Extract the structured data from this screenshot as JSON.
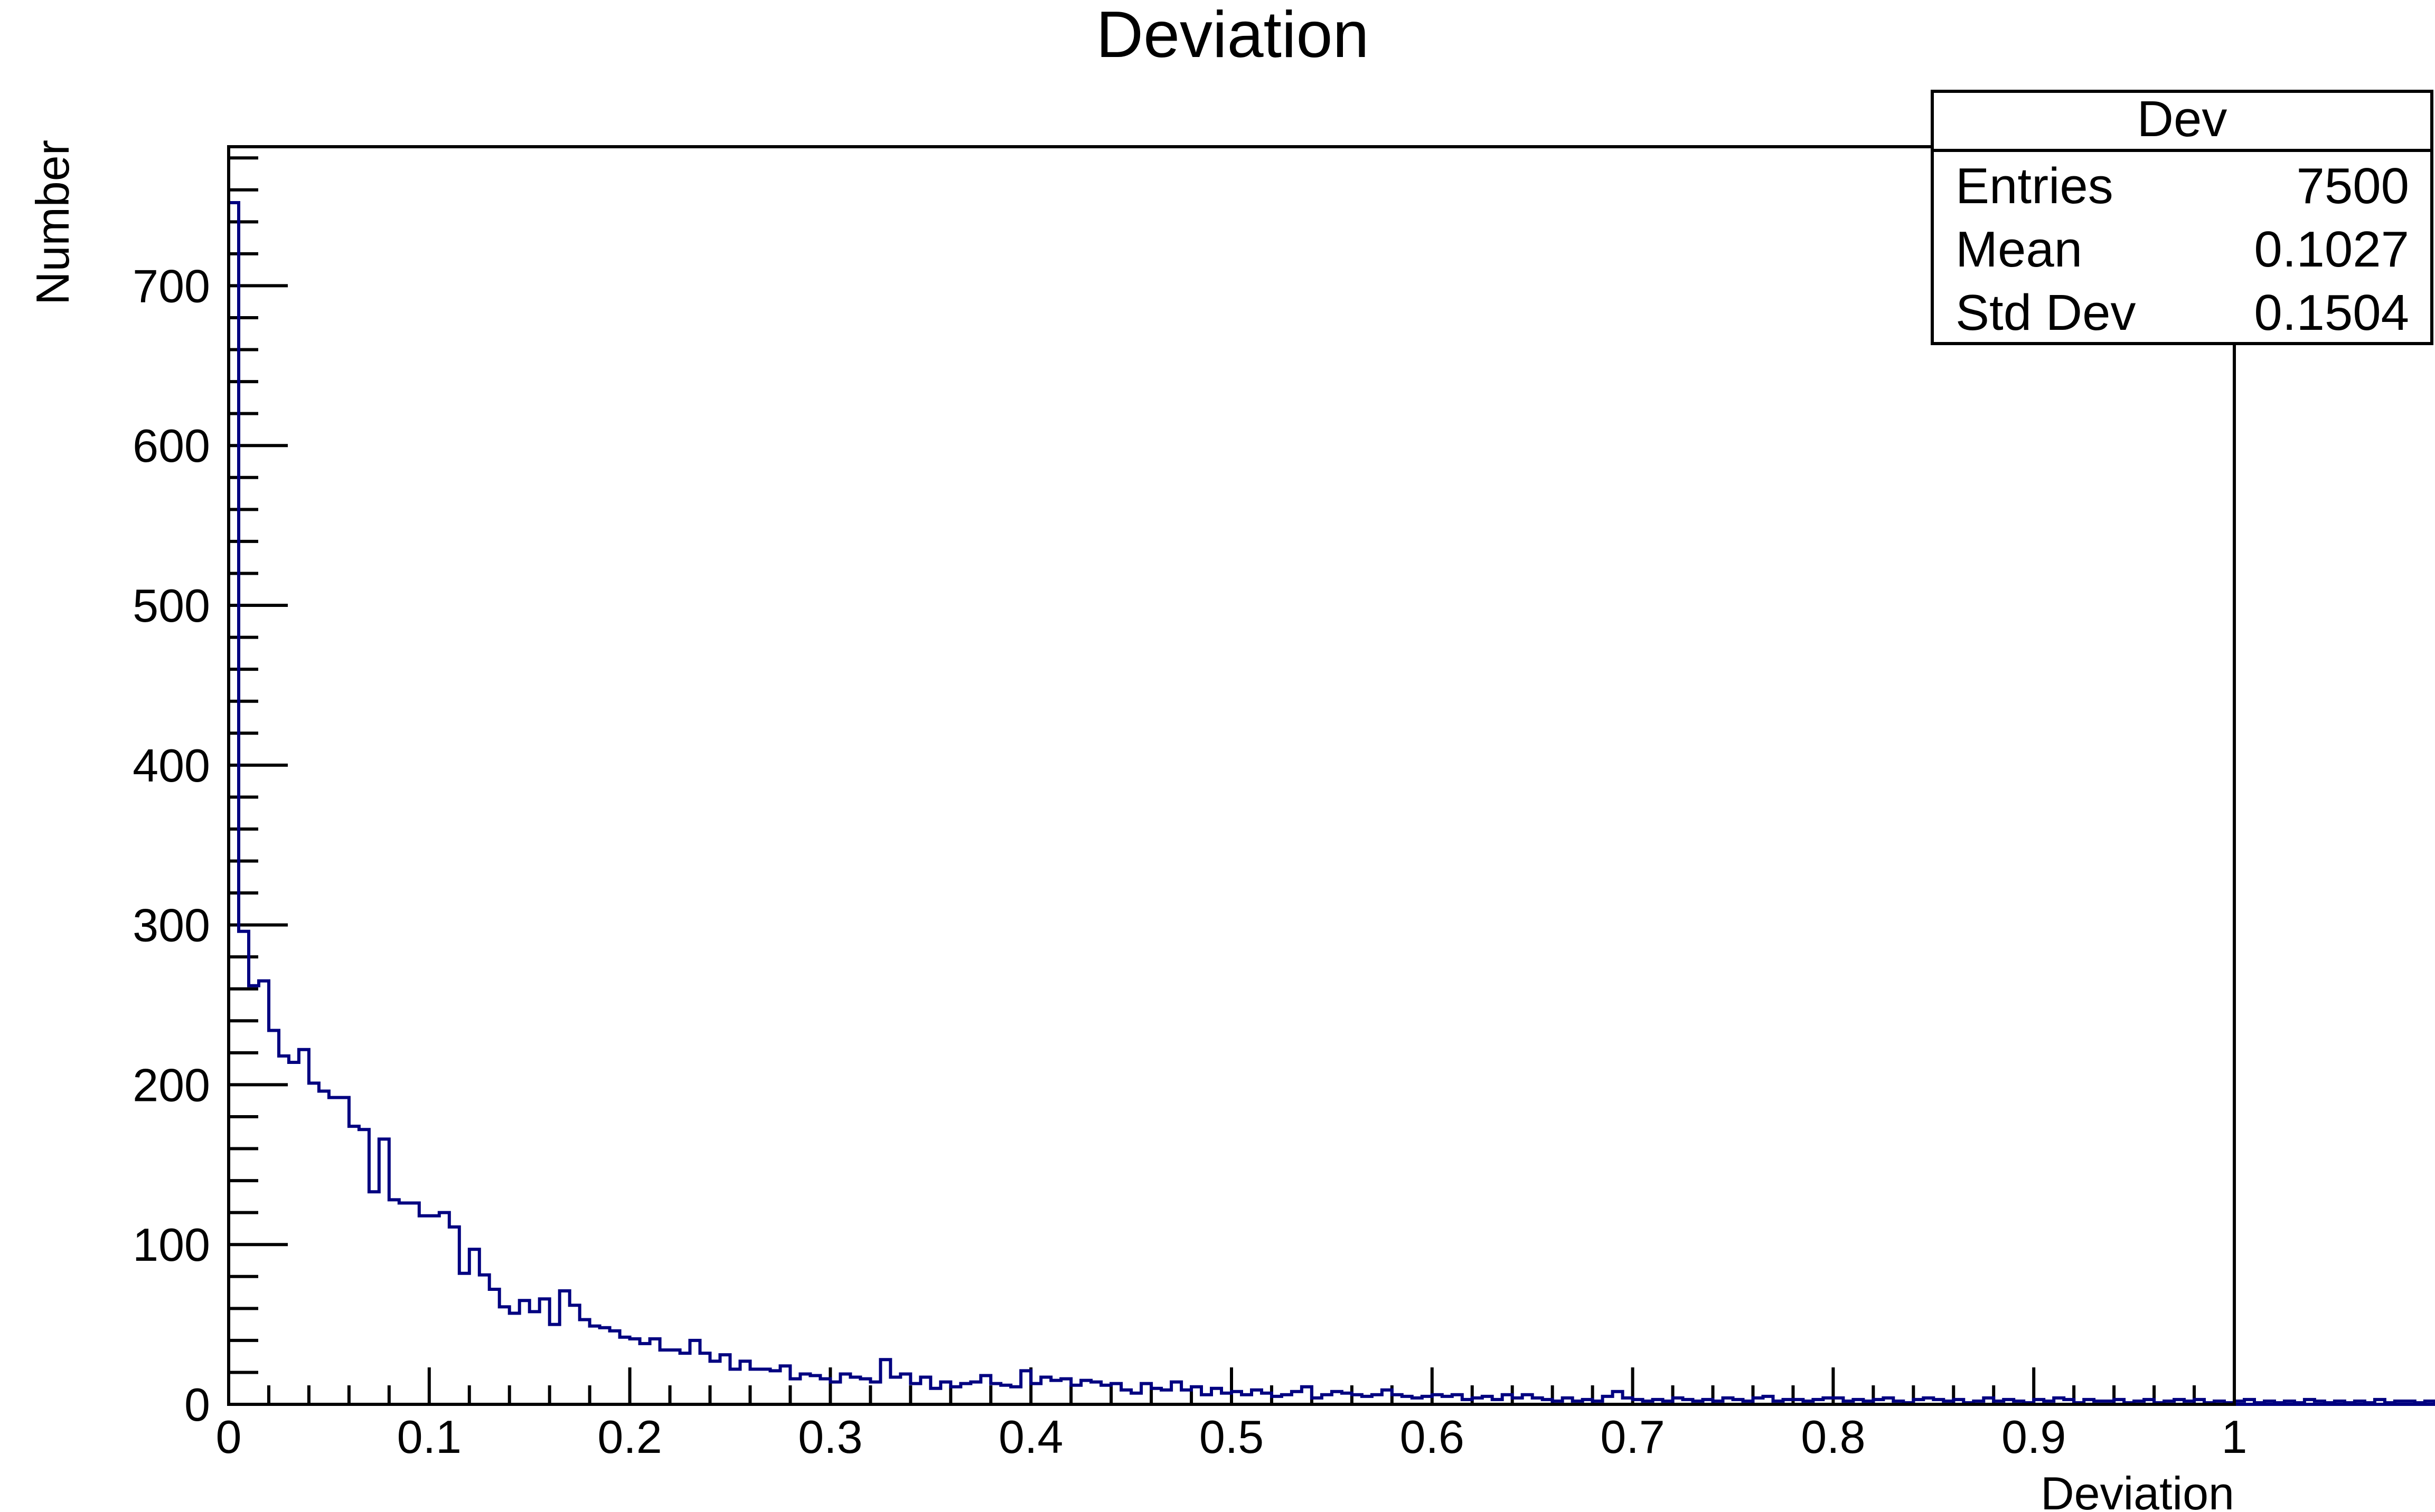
{
  "chart_data": {
    "type": "histogram",
    "title": "Deviation",
    "xlabel": "Deviation",
    "ylabel": "Number",
    "xlim": [
      0,
      1
    ],
    "ylim": [
      0,
      787
    ],
    "x_ticks": [
      "0",
      "0.1",
      "0.2",
      "0.3",
      "0.4",
      "0.5",
      "0.6",
      "0.7",
      "0.8",
      "0.9",
      "1"
    ],
    "y_ticks": [
      "0",
      "100",
      "200",
      "300",
      "400",
      "500",
      "600",
      "700"
    ],
    "line_color": "#000080",
    "grid": false,
    "stats_box": {
      "name": "Dev",
      "rows": [
        {
          "label": "Entries",
          "value": "7500"
        },
        {
          "label": "Mean",
          "value": "0.1027"
        },
        {
          "label": "Std Dev",
          "value": "0.1504"
        }
      ],
      "placement": "top-right"
    },
    "bin_width": 0.005,
    "counts": [
      752,
      296,
      262,
      265,
      234,
      218,
      214,
      222,
      201,
      196,
      192,
      192,
      174,
      172,
      133,
      166,
      128,
      126,
      126,
      118,
      118,
      120,
      111,
      82,
      97,
      81,
      72,
      61,
      57,
      65,
      58,
      66,
      50,
      71,
      62,
      53,
      49,
      48,
      46,
      42,
      41,
      38,
      41,
      34,
      34,
      32,
      40,
      32,
      27,
      31,
      22,
      27,
      22,
      22,
      21,
      24,
      16,
      19,
      18,
      16,
      14,
      19,
      17,
      16,
      14,
      28,
      17,
      19,
      13,
      17,
      10,
      14,
      11,
      13,
      14,
      18,
      13,
      12,
      11,
      21,
      13,
      17,
      15,
      16,
      12,
      15,
      14,
      12,
      13,
      9,
      7,
      13,
      10,
      9,
      14,
      9,
      11,
      6,
      10,
      7,
      8,
      6,
      9,
      7,
      5,
      6,
      8,
      11,
      4,
      6,
      8,
      7,
      6,
      5,
      6,
      9,
      6,
      5,
      4,
      5,
      6,
      5,
      6,
      3,
      4,
      5,
      3,
      6,
      4,
      6,
      4,
      3,
      2,
      4,
      2,
      3,
      2,
      5,
      8,
      4,
      3,
      2,
      3,
      2,
      4,
      3,
      2,
      3,
      2,
      4,
      3,
      2,
      4,
      5,
      2,
      3,
      3,
      2,
      3,
      4,
      4,
      2,
      3,
      2,
      3,
      4,
      2,
      1,
      3,
      4,
      3,
      2,
      3,
      1,
      2,
      4,
      2,
      3,
      2,
      1,
      3,
      2,
      4,
      3,
      1,
      3,
      2,
      2,
      3,
      1,
      2,
      3,
      1,
      2,
      3,
      2,
      3,
      1,
      2,
      1,
      2,
      3,
      1,
      2,
      1,
      2,
      1,
      3,
      2,
      1,
      2,
      1,
      2,
      1,
      3,
      1,
      2,
      2,
      1,
      2,
      1,
      2,
      1,
      2,
      1,
      2,
      2,
      1,
      2,
      1,
      1,
      2,
      1,
      1,
      2,
      1,
      2,
      1,
      1,
      2,
      1,
      2,
      1,
      1,
      2,
      1,
      0,
      1,
      2,
      1,
      1,
      2,
      1,
      0,
      1,
      1,
      1,
      2,
      1,
      1,
      0,
      1,
      2,
      1,
      1,
      0,
      1,
      1,
      1,
      2,
      1,
      0,
      1,
      1,
      1,
      0,
      1,
      2,
      1,
      0,
      1,
      1,
      1,
      0,
      1,
      1,
      0,
      1,
      1,
      1,
      0,
      1,
      1,
      0,
      1,
      2,
      0,
      1,
      1,
      0,
      1,
      1,
      0,
      1,
      1,
      0,
      1,
      1,
      0,
      1,
      0,
      1,
      1,
      0,
      1,
      0,
      1,
      1,
      0,
      1,
      0,
      1,
      2,
      0,
      1,
      0,
      1,
      0,
      1,
      0,
      0,
      1,
      1,
      0,
      1,
      0,
      1,
      0,
      1,
      0,
      0,
      1,
      0,
      1,
      0,
      1,
      1,
      0,
      0,
      1,
      0,
      1,
      0,
      0,
      1,
      0,
      1,
      0,
      0,
      1,
      0,
      0,
      1,
      0,
      1,
      0,
      0,
      1,
      0,
      0,
      1,
      0,
      0,
      1,
      0,
      0,
      1,
      0,
      0,
      0,
      1,
      0,
      0,
      1,
      0,
      0,
      0,
      1,
      0,
      0,
      0,
      1,
      0,
      0,
      0
    ]
  }
}
